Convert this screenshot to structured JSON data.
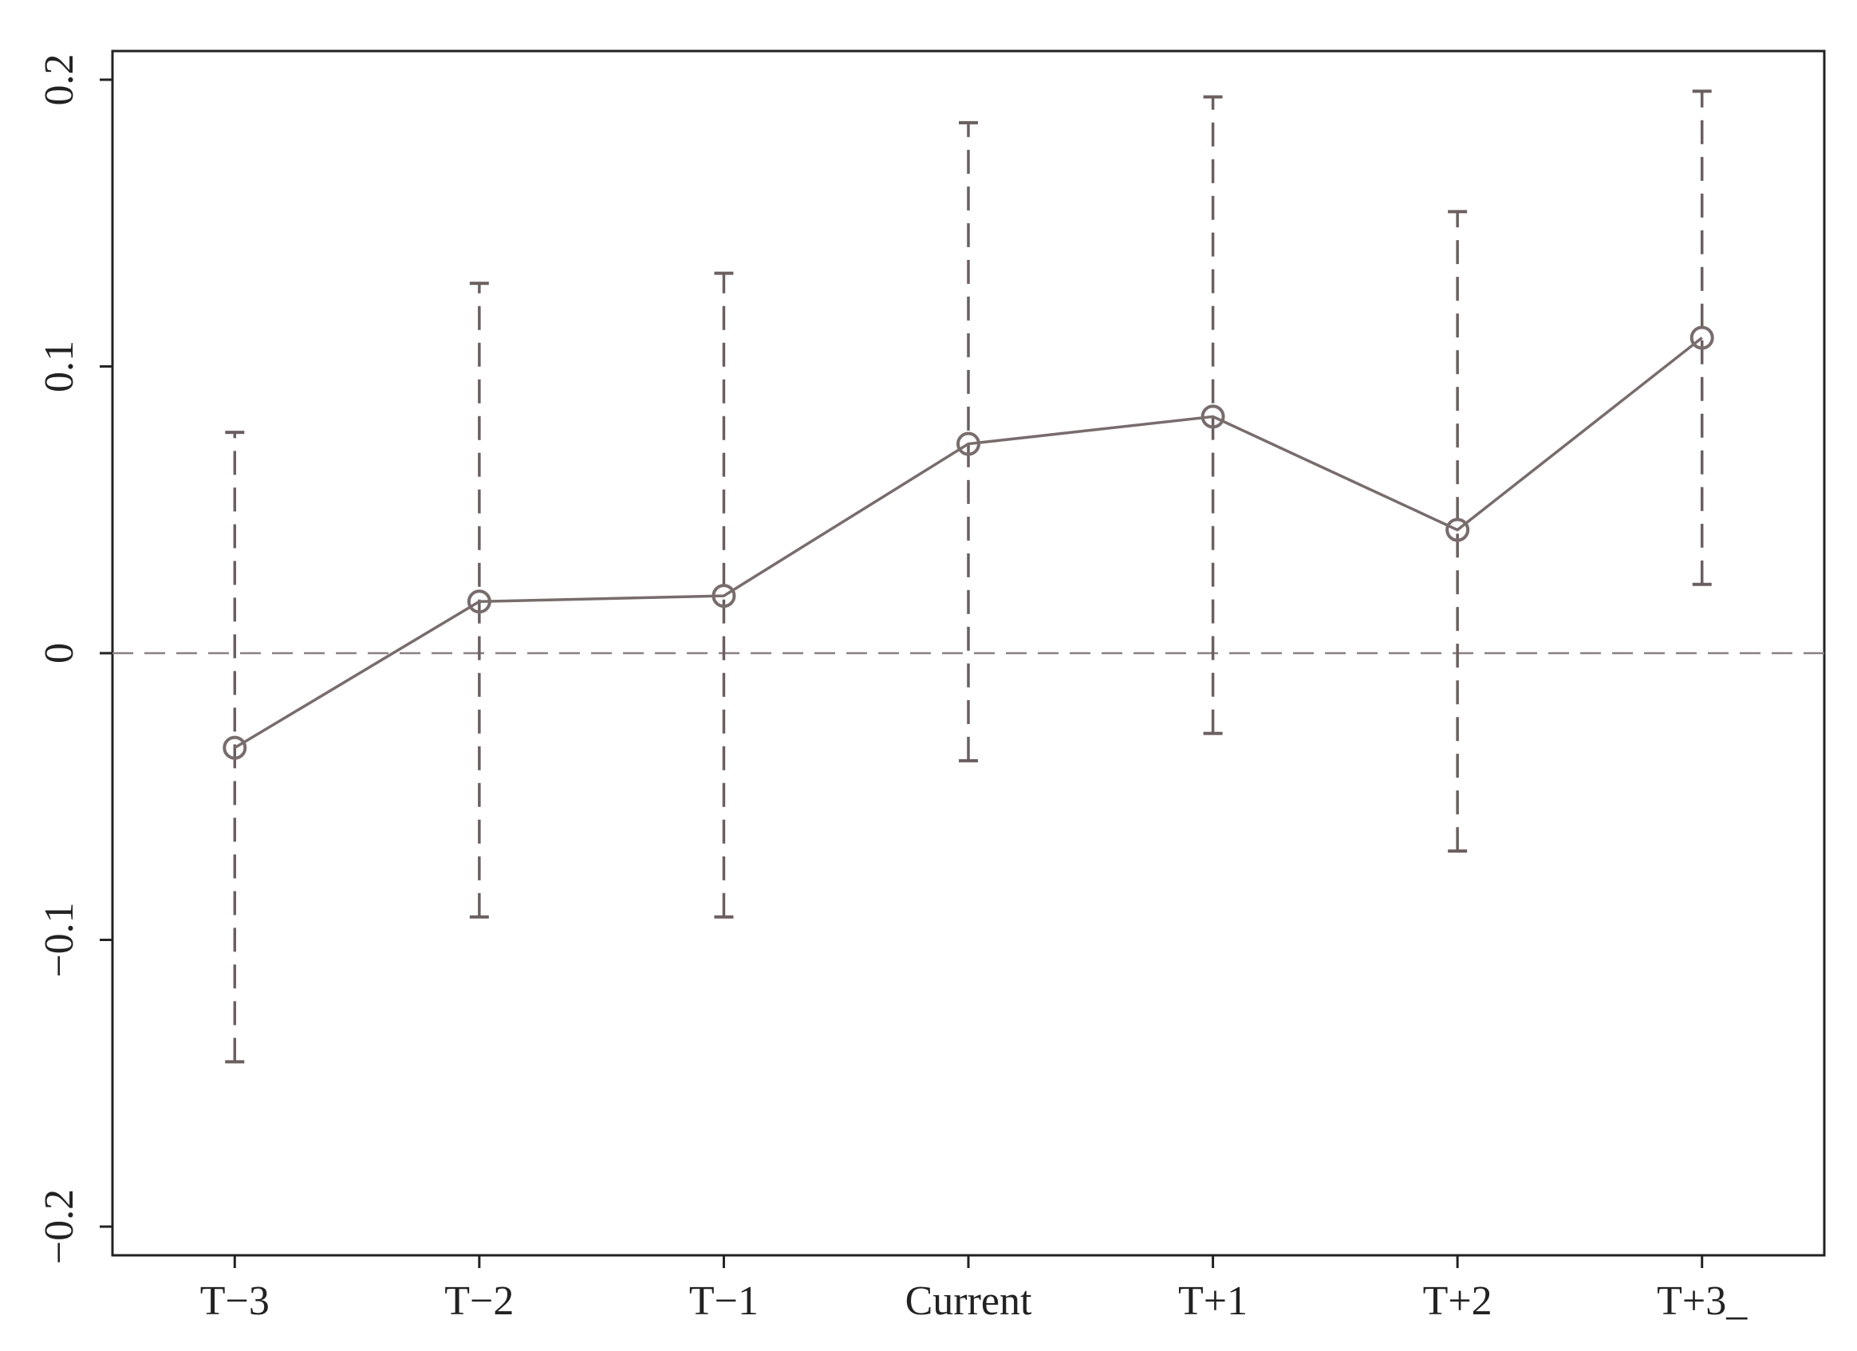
{
  "chart_data": {
    "type": "errorbar-line",
    "categories": [
      "T−3",
      "T−2",
      "T−1",
      "Current",
      "T+1",
      "T+2",
      "T+3_"
    ],
    "values": [
      -0.033,
      0.018,
      0.02,
      0.073,
      0.0825,
      0.043,
      0.11
    ],
    "lower": [
      -0.1425,
      -0.092,
      -0.092,
      -0.0375,
      -0.028,
      -0.069,
      0.024
    ],
    "upper": [
      0.077,
      0.129,
      0.1325,
      0.185,
      0.194,
      0.154,
      0.196
    ],
    "color": "#786c6c",
    "errorbar_color": "#6b5f5f",
    "ylim": [
      -0.21,
      0.21
    ],
    "yticks": [
      {
        "value": -0.2,
        "label": "−0.2"
      },
      {
        "value": -0.1,
        "label": "−0.1"
      },
      0,
      0.1,
      0.2
    ],
    "reference_line": 0
  }
}
